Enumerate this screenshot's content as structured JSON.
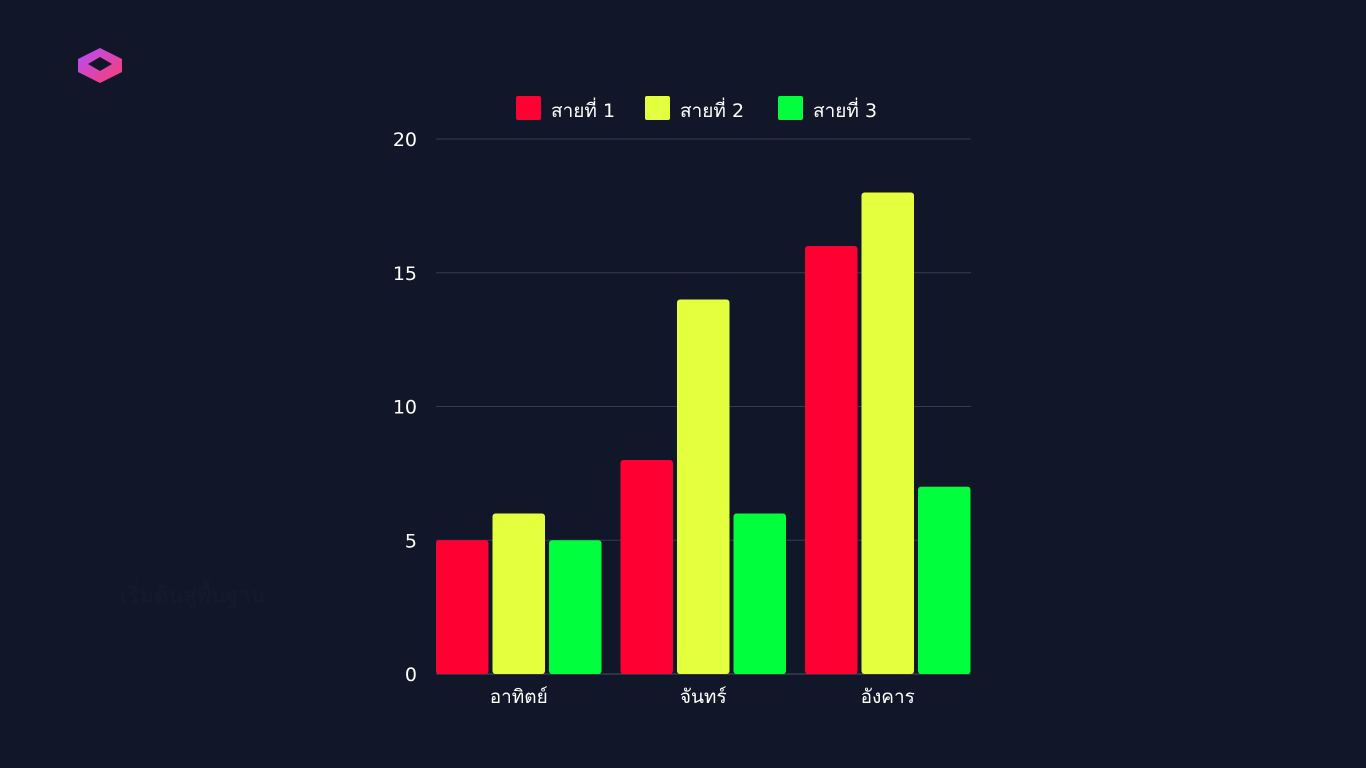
{
  "hidden_caption": "เริ่มต้นสู่พื้นฐาน",
  "colors": {
    "background": "#111729",
    "gridline": "#343b4c",
    "text": "#ffffff",
    "logo": [
      "#b24dff",
      "#ff3d6e"
    ]
  },
  "chart_data": {
    "type": "bar",
    "categories": [
      "อาทิตย์",
      "จันทร์",
      "อังคาร"
    ],
    "series": [
      {
        "name": "สายที่ 1",
        "color": "#ff0033",
        "values": [
          5,
          8,
          16
        ]
      },
      {
        "name": "สายที่ 2",
        "color": "#e3ff3d",
        "values": [
          6,
          14,
          18
        ]
      },
      {
        "name": "สายที่ 3",
        "color": "#00ff3c",
        "values": [
          5,
          6,
          7
        ]
      }
    ],
    "ylim": [
      0,
      20
    ],
    "yticks": [
      0,
      5,
      10,
      15,
      20
    ],
    "grid": true,
    "legend": "top"
  }
}
